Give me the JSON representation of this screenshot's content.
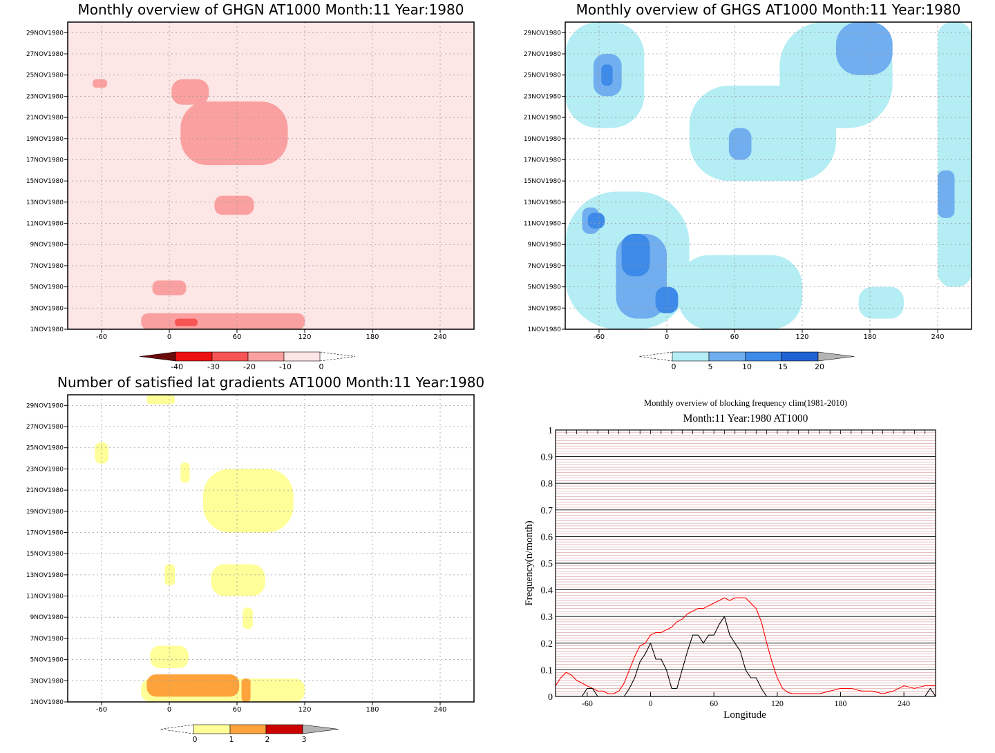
{
  "chart_data": [
    {
      "type": "heatmap",
      "title": "Monthly overview of GHGN AT1000 Month:11 Year:1980",
      "x_ticks": [
        -60,
        0,
        60,
        120,
        180,
        240
      ],
      "x_range": [
        -90,
        270
      ],
      "y_ticks": [
        "1NOV1980",
        "3NOV1980",
        "5NOV1980",
        "7NOV1980",
        "9NOV1980",
        "11NOV1980",
        "13NOV1980",
        "15NOV1980",
        "17NOV1980",
        "19NOV1980",
        "21NOV1980",
        "23NOV1980",
        "25NOV1980",
        "27NOV1980",
        "29NOV1980"
      ],
      "y_range": [
        1,
        30
      ],
      "colorbar": {
        "ticks": [
          "-40",
          "-30",
          "-20",
          "-10",
          "0"
        ],
        "colors": [
          "#fde6e6",
          "#fba0a0",
          "#f75454",
          "#ee1111",
          "#6b0a0a"
        ]
      },
      "contours": [
        {
          "level": 0,
          "color": "#fde6e6",
          "regions": [
            {
              "lon": [
                -90,
                270
              ],
              "day": [
                1,
                30
              ]
            }
          ]
        },
        {
          "level": -10,
          "color": "#fba0a0",
          "regions": [
            {
              "lon": [
                -25,
                120
              ],
              "day": [
                1,
                2.5
              ]
            },
            {
              "lon": [
                -15,
                15
              ],
              "day": [
                4.2,
                5.6
              ]
            },
            {
              "lon": [
                10,
                105
              ],
              "day": [
                16.5,
                22.5
              ]
            },
            {
              "lon": [
                40,
                75
              ],
              "day": [
                11.8,
                13.6
              ]
            },
            {
              "lon": [
                2,
                35
              ],
              "day": [
                22.2,
                24.6
              ]
            },
            {
              "lon": [
                -68,
                -55
              ],
              "day": [
                23.8,
                24.6
              ]
            }
          ]
        },
        {
          "level": -20,
          "color": "#f75454",
          "regions": [
            {
              "lon": [
                5,
                25
              ],
              "day": [
                1.3,
                2.0
              ]
            }
          ]
        }
      ]
    },
    {
      "type": "heatmap",
      "title": "Monthly overview of GHGS AT1000 Month:11 Year:1980",
      "x_ticks": [
        -60,
        0,
        60,
        120,
        180,
        240
      ],
      "x_range": [
        -90,
        270
      ],
      "y_ticks": [
        "1NOV1980",
        "3NOV1980",
        "5NOV1980",
        "7NOV1980",
        "9NOV1980",
        "11NOV1980",
        "13NOV1980",
        "15NOV1980",
        "17NOV1980",
        "19NOV1980",
        "21NOV1980",
        "23NOV1980",
        "25NOV1980",
        "27NOV1980",
        "29NOV1980"
      ],
      "y_range": [
        1,
        30
      ],
      "colorbar": {
        "ticks": [
          "0",
          "5",
          "10",
          "15",
          "20"
        ],
        "colors": [
          "#b4eef4",
          "#70aef0",
          "#3d8ae8",
          "#1f62d3",
          "#b4b4b4"
        ]
      },
      "contours": [
        {
          "level": 0,
          "color": "#b4eef4",
          "regions": [
            {
              "lon": [
                -90,
                20
              ],
              "day": [
                1,
                14
              ]
            },
            {
              "lon": [
                -90,
                -20
              ],
              "day": [
                20,
                30
              ]
            },
            {
              "lon": [
                10,
                120
              ],
              "day": [
                1,
                8
              ]
            },
            {
              "lon": [
                20,
                150
              ],
              "day": [
                15,
                24
              ]
            },
            {
              "lon": [
                100,
                200
              ],
              "day": [
                20,
                30
              ]
            },
            {
              "lon": [
                240,
                270
              ],
              "day": [
                5,
                30
              ]
            },
            {
              "lon": [
                170,
                210
              ],
              "day": [
                2,
                5
              ]
            }
          ]
        },
        {
          "level": 5,
          "color": "#70aef0",
          "regions": [
            {
              "lon": [
                -75,
                -60
              ],
              "day": [
                10,
                12.5
              ]
            },
            {
              "lon": [
                -45,
                0
              ],
              "day": [
                2,
                10
              ]
            },
            {
              "lon": [
                -65,
                -40
              ],
              "day": [
                23,
                27
              ]
            },
            {
              "lon": [
                55,
                75
              ],
              "day": [
                17,
                20
              ]
            },
            {
              "lon": [
                150,
                200
              ],
              "day": [
                25,
                30
              ]
            },
            {
              "lon": [
                240,
                255
              ],
              "day": [
                11.5,
                16
              ]
            }
          ]
        },
        {
          "level": 10,
          "color": "#3d8ae8",
          "regions": [
            {
              "lon": [
                -70,
                -55
              ],
              "day": [
                10.5,
                12
              ]
            },
            {
              "lon": [
                -40,
                -15
              ],
              "day": [
                6,
                10
              ]
            },
            {
              "lon": [
                -10,
                10
              ],
              "day": [
                2.5,
                5
              ]
            },
            {
              "lon": [
                -58,
                -48
              ],
              "day": [
                24,
                26
              ]
            }
          ]
        }
      ]
    },
    {
      "type": "heatmap",
      "title": "Number of satisfied lat gradients AT1000 Month:11 Year:1980",
      "x_ticks": [
        -60,
        0,
        60,
        120,
        180,
        240
      ],
      "x_range": [
        -90,
        270
      ],
      "y_ticks": [
        "1NOV1980",
        "3NOV1980",
        "5NOV1980",
        "7NOV1980",
        "9NOV1980",
        "11NOV1980",
        "13NOV1980",
        "15NOV1980",
        "17NOV1980",
        "19NOV1980",
        "21NOV1980",
        "23NOV1980",
        "25NOV1980",
        "27NOV1980",
        "29NOV1980"
      ],
      "y_range": [
        1,
        30
      ],
      "colorbar": {
        "ticks": [
          "0",
          "1",
          "2",
          "3"
        ],
        "colors": [
          "#ffff99",
          "#fea33c",
          "#cc0000",
          "#b4b4b4"
        ]
      },
      "contours": [
        {
          "level": 1,
          "color": "#ffff99",
          "regions": [
            {
              "lon": [
                -25,
                120
              ],
              "day": [
                1,
                3.2
              ]
            },
            {
              "lon": [
                -17,
                17
              ],
              "day": [
                4.2,
                6.3
              ]
            },
            {
              "lon": [
                -20,
                5
              ],
              "day": [
                29.1,
                30
              ]
            },
            {
              "lon": [
                -66,
                -54
              ],
              "day": [
                23.5,
                25.5
              ]
            },
            {
              "lon": [
                10,
                18
              ],
              "day": [
                21.7,
                23.6
              ]
            },
            {
              "lon": [
                30,
                110
              ],
              "day": [
                17,
                23
              ]
            },
            {
              "lon": [
                37,
                85
              ],
              "day": [
                11,
                14
              ]
            },
            {
              "lon": [
                -4,
                5
              ],
              "day": [
                12,
                14
              ]
            },
            {
              "lon": [
                65,
                74
              ],
              "day": [
                7.9,
                9.9
              ]
            }
          ]
        },
        {
          "level": 2,
          "color": "#fea33c",
          "regions": [
            {
              "lon": [
                -20,
                62
              ],
              "day": [
                1.5,
                3.6
              ]
            },
            {
              "lon": [
                64,
                72
              ],
              "day": [
                1,
                3.2
              ]
            }
          ]
        }
      ]
    },
    {
      "type": "line",
      "title": "Monthly overview of blocking frequency clim(1981-2010)",
      "subtitle": "Month:11 Year:1980  AT1000",
      "xlabel": "Longitude",
      "ylabel": "Frequency(n/month)",
      "x_ticks": [
        -60,
        0,
        60,
        120,
        180,
        240
      ],
      "y_ticks": [
        "0",
        "0.1",
        "0.2",
        "0.3",
        "0.4",
        "0.5",
        "0.6",
        "0.7",
        "0.8",
        "0.9",
        "1"
      ],
      "xlim": [
        -90,
        270
      ],
      "ylim": [
        0,
        1
      ],
      "series": [
        {
          "color": "#ff0000",
          "x": [
            -90,
            -85,
            -80,
            -75,
            -70,
            -65,
            -60,
            -55,
            -50,
            -45,
            -40,
            -35,
            -30,
            -25,
            -20,
            -15,
            -10,
            -5,
            0,
            5,
            10,
            15,
            20,
            25,
            30,
            35,
            40,
            45,
            50,
            55,
            60,
            65,
            70,
            75,
            80,
            85,
            90,
            95,
            100,
            105,
            110,
            115,
            120,
            125,
            130,
            135,
            140,
            150,
            160,
            170,
            180,
            190,
            200,
            210,
            220,
            230,
            240,
            250,
            260,
            270
          ],
          "y": [
            0.04,
            0.07,
            0.09,
            0.08,
            0.06,
            0.05,
            0.04,
            0.03,
            0.02,
            0.02,
            0.01,
            0.01,
            0.02,
            0.05,
            0.1,
            0.15,
            0.19,
            0.2,
            0.23,
            0.24,
            0.24,
            0.25,
            0.26,
            0.28,
            0.29,
            0.31,
            0.32,
            0.33,
            0.33,
            0.34,
            0.35,
            0.36,
            0.37,
            0.36,
            0.37,
            0.37,
            0.37,
            0.35,
            0.33,
            0.28,
            0.2,
            0.13,
            0.07,
            0.03,
            0.015,
            0.01,
            0.01,
            0.01,
            0.01,
            0.02,
            0.03,
            0.03,
            0.02,
            0.02,
            0.01,
            0.02,
            0.04,
            0.03,
            0.04,
            0.04
          ]
        },
        {
          "color": "#000000",
          "x": [
            -90,
            -85,
            -80,
            -75,
            -70,
            -65,
            -60,
            -55,
            -50,
            -45,
            -40,
            -35,
            -30,
            -25,
            -20,
            -15,
            -10,
            -5,
            0,
            5,
            10,
            15,
            20,
            25,
            30,
            35,
            40,
            45,
            50,
            55,
            60,
            65,
            70,
            75,
            80,
            85,
            90,
            95,
            100,
            105,
            110,
            115,
            120,
            130,
            140,
            150,
            160,
            170,
            180,
            190,
            200,
            210,
            220,
            230,
            240,
            250,
            255,
            260,
            265,
            270
          ],
          "y": [
            0,
            0,
            0,
            0,
            0,
            0,
            0.03,
            0.03,
            0,
            0,
            0,
            0,
            0,
            0,
            0.03,
            0.07,
            0.13,
            0.16,
            0.2,
            0.14,
            0.14,
            0.1,
            0.03,
            0.03,
            0.1,
            0.17,
            0.23,
            0.23,
            0.2,
            0.23,
            0.23,
            0.27,
            0.3,
            0.23,
            0.2,
            0.17,
            0.1,
            0.07,
            0.07,
            0.03,
            0,
            0,
            0,
            0,
            0,
            0,
            0,
            0,
            0,
            0,
            0,
            0,
            0,
            0,
            0,
            0,
            0,
            0,
            0.03,
            0
          ]
        }
      ]
    }
  ],
  "colors": {
    "grid_dotted": "#9a9a9a",
    "blocking_minor_grid": "#d08080"
  }
}
